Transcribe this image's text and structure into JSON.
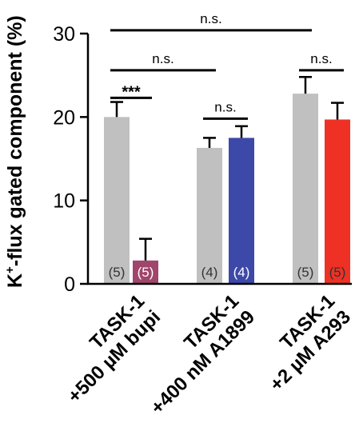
{
  "chart_data": {
    "type": "bar",
    "ylabel_main": "K",
    "ylabel_sup": "+",
    "ylabel_rest": "-flux gated component (%)",
    "ylim": [
      0,
      30
    ],
    "yticks": [
      "0",
      "10",
      "20",
      "30"
    ],
    "ytick_values": [
      0,
      10,
      20,
      30
    ],
    "groups": [
      {
        "line1": "TASK-1",
        "line2": "+500 µM bupi",
        "bars": [
          {
            "label": "TASK-1",
            "value": 20.0,
            "error": 1.8,
            "n": "(5)",
            "color": "#c0c0c0",
            "n_color": "#333333"
          },
          {
            "label": "+500 µM bupi",
            "value": 2.8,
            "error": 2.6,
            "n": "(5)",
            "color": "#a0456b",
            "n_color": "#ffffff"
          }
        ]
      },
      {
        "line1": "TASK-1",
        "line2": "+400 nM A1899",
        "bars": [
          {
            "label": "TASK-1",
            "value": 16.3,
            "error": 1.2,
            "n": "(4)",
            "color": "#c0c0c0",
            "n_color": "#333333"
          },
          {
            "label": "+400 nM A1899",
            "value": 17.5,
            "error": 1.4,
            "n": "(4)",
            "color": "#3d49a8",
            "n_color": "#ffffff"
          }
        ]
      },
      {
        "line1": "TASK-1",
        "line2": "+2 µM A293",
        "bars": [
          {
            "label": "TASK-1",
            "value": 22.8,
            "error": 2.0,
            "n": "(5)",
            "color": "#c0c0c0",
            "n_color": "#333333"
          },
          {
            "label": "+2 µM A293",
            "value": 19.7,
            "error": 2.0,
            "n": "(5)",
            "color": "#ee3124",
            "n_color": "#333333"
          }
        ]
      }
    ],
    "significance": [
      {
        "from": [
          0,
          0
        ],
        "to": [
          2,
          0
        ],
        "level": 30.4,
        "label": "n.s."
      },
      {
        "from": [
          0,
          0
        ],
        "to": [
          1,
          0
        ],
        "level": 25.6,
        "label": "n.s."
      },
      {
        "from": [
          0,
          0
        ],
        "to": [
          0,
          1
        ],
        "level": 22.3,
        "label": "***"
      },
      {
        "from": [
          1,
          0
        ],
        "to": [
          1,
          1
        ],
        "level": 19.8,
        "label": "n.s."
      },
      {
        "from": [
          2,
          0
        ],
        "to": [
          2,
          1
        ],
        "level": 25.6,
        "label": "n.s."
      }
    ]
  }
}
